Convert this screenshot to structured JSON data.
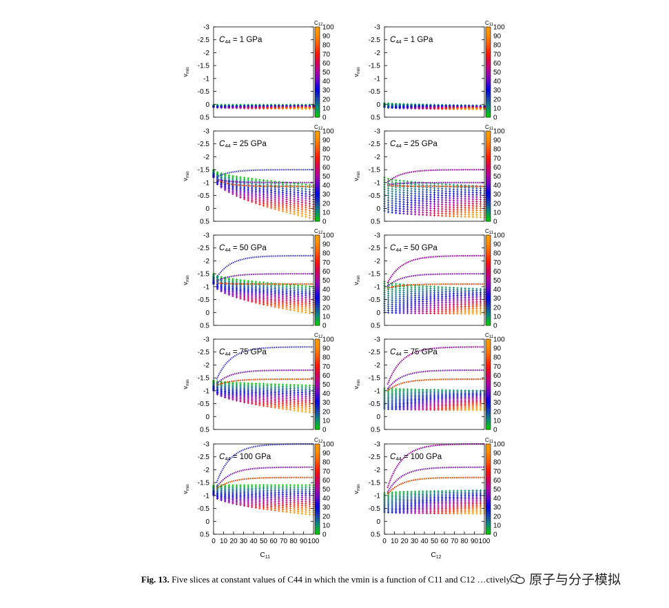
{
  "figure": {
    "caption_label": "Fig. 13.",
    "caption_text": "Five slices at constant values of C44 in which the vmin is a function of C11 and C12 …ctively.",
    "watermark": "原子与分子模拟"
  },
  "colors": {
    "palette": [
      "#00cc00",
      "#0a8a7a",
      "#1a3fb0",
      "#0000e0",
      "#6a00c8",
      "#b000a0",
      "#d80050",
      "#ff1a00",
      "#ff5a00",
      "#ff8c00",
      "#ffa000"
    ]
  },
  "chart_data": [
    {
      "type": "scatter",
      "panel_label": "C44 = 1 GPa",
      "c44": 1,
      "x_variable": "C11",
      "color_variable": "C12",
      "xlabel": "",
      "ylabel": "vmin",
      "colorbar_label": "C12",
      "ylim": [
        0.5,
        -3
      ],
      "xlim": [
        0,
        100
      ],
      "yticks": [
        "-3",
        "-2.5",
        "-2",
        "-1.5",
        "-1",
        "-0.5",
        "0",
        "0.5"
      ],
      "colorbar_ticks": [
        "100",
        "90",
        "80",
        "70",
        "60",
        "50",
        "40",
        "30",
        "20",
        "10",
        "0"
      ],
      "mode": "left",
      "grid": false,
      "upper_branch_levels": [],
      "fan": {
        "low_start": 0.12,
        "high_start": 0.02,
        "low_end": 0.18,
        "high_end": 0.02
      }
    },
    {
      "type": "scatter",
      "panel_label": "C44 = 1 GPa",
      "c44": 1,
      "x_variable": "C12",
      "color_variable": "C11",
      "xlabel": "",
      "ylabel": "vmin",
      "colorbar_label": "C11",
      "ylim": [
        0.5,
        -3
      ],
      "xlim": [
        0,
        100
      ],
      "yticks": [
        "-3",
        "-2.5",
        "-2",
        "-1.5",
        "-1",
        "-0.5",
        "0",
        "0.5"
      ],
      "colorbar_ticks": [
        "100",
        "90",
        "80",
        "70",
        "60",
        "50",
        "40",
        "30",
        "20",
        "10",
        "0"
      ],
      "mode": "right",
      "grid": false,
      "upper_branch_levels": [],
      "fan": {
        "low_start": 0.12,
        "high_start": -0.05,
        "low_end": 0.2,
        "high_end": 0.05
      }
    },
    {
      "type": "scatter",
      "panel_label": "C44 = 25 GPa",
      "c44": 25,
      "x_variable": "C11",
      "color_variable": "C12",
      "xlabel": "",
      "ylabel": "vmin",
      "colorbar_label": "C12",
      "ylim": [
        0.5,
        -3
      ],
      "xlim": [
        0,
        100
      ],
      "yticks": [
        "-3",
        "-2.5",
        "-2",
        "-1.5",
        "-1",
        "-0.5",
        "0",
        "0.5"
      ],
      "colorbar_ticks": [
        "100",
        "90",
        "80",
        "70",
        "60",
        "50",
        "40",
        "30",
        "20",
        "10",
        "0"
      ],
      "mode": "left",
      "grid": false,
      "upper_branch_levels": [
        -1.5,
        -1.0,
        -0.85
      ],
      "fan": {
        "low_start": -1.2,
        "high_start": -1.5,
        "low_end": 0.4,
        "high_end": -0.9
      }
    },
    {
      "type": "scatter",
      "panel_label": "C44 = 25 GPa",
      "c44": 25,
      "x_variable": "C12",
      "color_variable": "C11",
      "xlabel": "",
      "ylabel": "vmin",
      "colorbar_label": "C11",
      "ylim": [
        0.5,
        -3
      ],
      "xlim": [
        0,
        100
      ],
      "yticks": [
        "-3",
        "-2.5",
        "-2",
        "-1.5",
        "-1",
        "-0.5",
        "0",
        "0.5"
      ],
      "colorbar_ticks": [
        "100",
        "90",
        "80",
        "70",
        "60",
        "50",
        "40",
        "30",
        "20",
        "10",
        "0"
      ],
      "mode": "right",
      "grid": false,
      "upper_branch_levels": [
        -1.5,
        -1.0,
        -0.85
      ],
      "fan": {
        "low_start": 0.1,
        "high_start": -1.2,
        "low_end": 0.35,
        "high_end": -0.85
      }
    },
    {
      "type": "scatter",
      "panel_label": "C44 = 50 GPa",
      "c44": 50,
      "x_variable": "C11",
      "color_variable": "C12",
      "xlabel": "",
      "ylabel": "vmin",
      "colorbar_label": "C12",
      "ylim": [
        0.5,
        -3
      ],
      "xlim": [
        0,
        100
      ],
      "yticks": [
        "-3",
        "-2.5",
        "-2",
        "-1.5",
        "-1",
        "-0.5",
        "0",
        "0.5"
      ],
      "colorbar_ticks": [
        "100",
        "90",
        "80",
        "70",
        "60",
        "50",
        "40",
        "30",
        "20",
        "10",
        "0"
      ],
      "mode": "left",
      "grid": false,
      "upper_branch_levels": [
        -2.2,
        -1.5,
        -1.1
      ],
      "fan": {
        "low_start": -1.1,
        "high_start": -1.5,
        "low_end": 0.05,
        "high_end": -1.0
      }
    },
    {
      "type": "scatter",
      "panel_label": "C44 = 50 GPa",
      "c44": 50,
      "x_variable": "C12",
      "color_variable": "C11",
      "xlabel": "",
      "ylabel": "vmin",
      "colorbar_label": "C11",
      "ylim": [
        0.5,
        -3
      ],
      "xlim": [
        0,
        100
      ],
      "yticks": [
        "-3",
        "-2.5",
        "-2",
        "-1.5",
        "-1",
        "-0.5",
        "0",
        "0.5"
      ],
      "colorbar_ticks": [
        "100",
        "90",
        "80",
        "70",
        "60",
        "50",
        "40",
        "30",
        "20",
        "10",
        "0"
      ],
      "mode": "right",
      "grid": false,
      "upper_branch_levels": [
        -2.2,
        -1.5,
        -1.1
      ],
      "fan": {
        "low_start": 0.0,
        "high_start": -1.2,
        "low_end": 0.05,
        "high_end": -0.9
      }
    },
    {
      "type": "scatter",
      "panel_label": "C44 = 75 GPa",
      "c44": 75,
      "x_variable": "C11",
      "color_variable": "C12",
      "xlabel": "",
      "ylabel": "vmin",
      "colorbar_label": "C12",
      "ylim": [
        0.5,
        -3
      ],
      "xlim": [
        0,
        100
      ],
      "yticks": [
        "-3",
        "-2.5",
        "-2",
        "-1.5",
        "-1",
        "-0.5",
        "0",
        "0.5"
      ],
      "colorbar_ticks": [
        "100",
        "90",
        "80",
        "70",
        "60",
        "50",
        "40",
        "30",
        "20",
        "10",
        "0"
      ],
      "mode": "left",
      "grid": false,
      "upper_branch_levels": [
        -2.7,
        -1.8,
        -1.45
      ],
      "fan": {
        "low_start": -1.0,
        "high_start": -1.4,
        "low_end": -0.15,
        "high_end": -1.2
      }
    },
    {
      "type": "scatter",
      "panel_label": "C44 = 75 GPa",
      "c44": 75,
      "x_variable": "C12",
      "color_variable": "C11",
      "xlabel": "",
      "ylabel": "vmin",
      "colorbar_label": "C11",
      "ylim": [
        0.5,
        -3
      ],
      "xlim": [
        0,
        100
      ],
      "yticks": [
        "-3",
        "-2.5",
        "-2",
        "-1.5",
        "-1",
        "-0.5",
        "0",
        "0.5"
      ],
      "colorbar_ticks": [
        "100",
        "90",
        "80",
        "70",
        "60",
        "50",
        "40",
        "30",
        "20",
        "10",
        "0"
      ],
      "mode": "right",
      "grid": false,
      "upper_branch_levels": [
        -2.7,
        -1.8,
        -1.45
      ],
      "fan": {
        "low_start": -0.3,
        "high_start": -1.1,
        "low_end": -0.25,
        "high_end": -1.0
      }
    },
    {
      "type": "scatter",
      "panel_label": "C44 = 100 GPa",
      "c44": 100,
      "x_variable": "C11",
      "color_variable": "C12",
      "xlabel": "C11",
      "ylabel": "vmin",
      "colorbar_label": "C12",
      "ylim": [
        0.5,
        -3
      ],
      "xlim": [
        0,
        100
      ],
      "xticks": [
        "0",
        "10",
        "20",
        "30",
        "40",
        "50",
        "60",
        "70",
        "80",
        "90",
        "100"
      ],
      "yticks": [
        "-3",
        "-2.5",
        "-2",
        "-1.5",
        "-1",
        "-0.5",
        "0",
        "0.5"
      ],
      "colorbar_ticks": [
        "100",
        "90",
        "80",
        "70",
        "60",
        "50",
        "40",
        "30",
        "20",
        "10",
        "0"
      ],
      "mode": "left",
      "grid": false,
      "upper_branch_levels": [
        -3.0,
        -2.1,
        -1.7
      ],
      "fan": {
        "low_start": -1.0,
        "high_start": -1.4,
        "low_end": -0.25,
        "high_end": -1.4
      }
    },
    {
      "type": "scatter",
      "panel_label": "C44 = 100 GPa",
      "c44": 100,
      "x_variable": "C12",
      "color_variable": "C11",
      "xlabel": "C12",
      "ylabel": "vmin",
      "colorbar_label": "C11",
      "ylim": [
        0.5,
        -3
      ],
      "xlim": [
        0,
        100
      ],
      "xticks": [
        "0",
        "10",
        "20",
        "30",
        "40",
        "50",
        "60",
        "70",
        "80",
        "90",
        "100"
      ],
      "yticks": [
        "-3",
        "-2.5",
        "-2",
        "-1.5",
        "-1",
        "-0.5",
        "0",
        "0.5"
      ],
      "colorbar_ticks": [
        "100",
        "90",
        "80",
        "70",
        "60",
        "50",
        "40",
        "30",
        "20",
        "10",
        "0"
      ],
      "mode": "right",
      "grid": false,
      "upper_branch_levels": [
        -3.0,
        -2.1,
        -1.7
      ],
      "fan": {
        "low_start": -0.35,
        "high_start": -1.1,
        "low_end": -0.3,
        "high_end": -1.2
      }
    }
  ]
}
